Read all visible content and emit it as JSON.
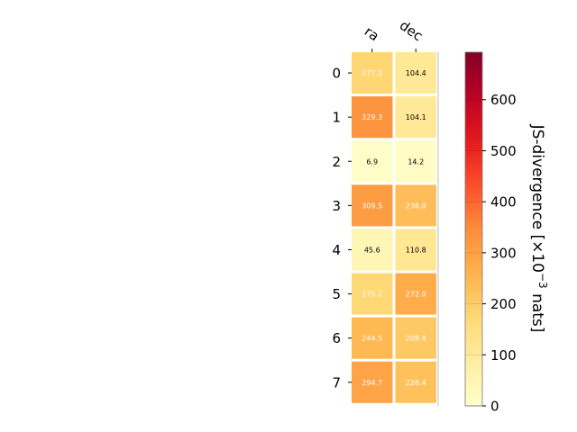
{
  "chart_data": {
    "type": "heatmap",
    "columns": [
      "ra",
      "dec"
    ],
    "rows": [
      "0",
      "1",
      "2",
      "3",
      "4",
      "5",
      "6",
      "7"
    ],
    "values": [
      [
        177.2,
        104.4
      ],
      [
        329.3,
        104.1
      ],
      [
        6.9,
        14.2
      ],
      [
        309.5,
        236.0
      ],
      [
        45.6,
        110.8
      ],
      [
        175.2,
        272.0
      ],
      [
        244.5,
        208.4
      ],
      [
        294.7,
        226.4
      ]
    ],
    "value_labels": [
      [
        "177.2",
        "104.4"
      ],
      [
        "329.3",
        "104.1"
      ],
      [
        "6.9",
        "14.2"
      ],
      [
        "309.5",
        "236.0"
      ],
      [
        "45.6",
        "110.8"
      ],
      [
        "175.2",
        "272.0"
      ],
      [
        "244.5",
        "208.4"
      ],
      [
        "294.7",
        "226.4"
      ]
    ],
    "colorbar": {
      "label_text": "JS-divergence [×10",
      "label_exp": "−3",
      "label_unit": " nats]",
      "range": [
        0,
        693
      ],
      "ticks": [
        0,
        100,
        200,
        300,
        400,
        500,
        600
      ],
      "tick_labels": [
        "0",
        "100",
        "200",
        "300",
        "400",
        "500",
        "600"
      ],
      "colormap": "YlOrRd"
    },
    "grid": false,
    "legend": "right"
  }
}
